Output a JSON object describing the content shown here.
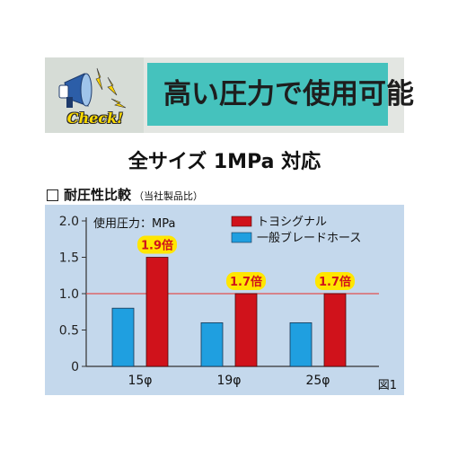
{
  "banner": {
    "badge": "Check!",
    "title": "高い圧力で使用可能",
    "icon": "megaphone-icon"
  },
  "subtitle": "全サイズ 1MPa 対応",
  "section": {
    "title": "耐圧性比較",
    "note": "（当社製品比）"
  },
  "colors": {
    "toyo": "#d0121b",
    "general": "#1f9fe0",
    "panel": "#c4d8ec",
    "ratio_label_bg": "#ffe600",
    "ratio_label_text": "#d0121b",
    "banner_box": "#45c2bd"
  },
  "chart_data": {
    "type": "bar",
    "unit_label": "使用圧力：MPa",
    "categories": [
      "15φ",
      "19φ",
      "25φ"
    ],
    "series": [
      {
        "name": "一般ブレードホース",
        "values": [
          0.8,
          0.6,
          0.6
        ]
      },
      {
        "name": "トヨシグナル",
        "values": [
          1.5,
          1.0,
          1.0
        ]
      }
    ],
    "ratio_labels": [
      "1.9倍",
      "1.7倍",
      "1.7倍"
    ],
    "yticks": [
      "2.0",
      "1.5",
      "1.0",
      "0.5",
      "0"
    ],
    "ylim": [
      0,
      2.0
    ],
    "reference_line": 1.0,
    "grid": false,
    "legend_position": "top-right",
    "figure_label": "図1"
  }
}
